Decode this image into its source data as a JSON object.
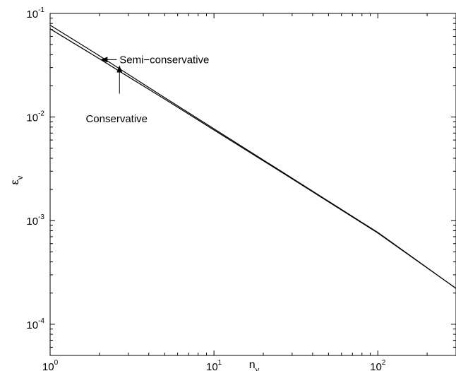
{
  "chart_data": {
    "type": "line",
    "title": "",
    "xlabel": "n",
    "xlabel_sub": "v",
    "ylabel": "ε",
    "ylabel_sub": "v",
    "xscale": "log",
    "yscale": "log",
    "xlim": [
      1,
      300
    ],
    "ylim": [
      5e-05,
      0.1
    ],
    "grid": false,
    "legend": "none",
    "x_ticks": [
      {
        "value": 1,
        "base": "10",
        "exp": "0"
      },
      {
        "value": 10,
        "base": "10",
        "exp": "1"
      },
      {
        "value": 100,
        "base": "10",
        "exp": "2"
      }
    ],
    "y_ticks": [
      {
        "value": 0.0001,
        "base": "10",
        "exp": "-4"
      },
      {
        "value": 0.001,
        "base": "10",
        "exp": "-3"
      },
      {
        "value": 0.01,
        "base": "10",
        "exp": "-2"
      },
      {
        "value": 0.1,
        "base": "10",
        "exp": "-1"
      }
    ],
    "series": [
      {
        "x": [
          1,
          2,
          3,
          5,
          10,
          30,
          100,
          300
        ],
        "y": [
          0.077,
          0.039,
          0.0258,
          0.0154,
          0.0077,
          0.00257,
          0.00077,
          0.000222
        ]
      },
      {
        "x": [
          1,
          2,
          3,
          5,
          10,
          30,
          100,
          300
        ],
        "y": [
          0.071,
          0.0365,
          0.0245,
          0.0149,
          0.0075,
          0.00253,
          0.00076,
          0.000222
        ]
      }
    ],
    "annotations": [
      {
        "text": "Semi−conservative",
        "text_x": 2.65,
        "text_y": 0.0358,
        "arrow_from": [
          2.55,
          0.0358
        ],
        "arrow_to": [
          2.05,
          0.0358
        ],
        "anchor": "start"
      },
      {
        "text": "Conservative",
        "text_x": 1.65,
        "text_y": 0.0096,
        "arrow_from": [
          2.65,
          0.0168
        ],
        "arrow_to": [
          2.65,
          0.031
        ],
        "anchor": "start"
      }
    ],
    "colors": {
      "line": "#000000",
      "axis": "#000000",
      "background": "#ffffff"
    }
  }
}
